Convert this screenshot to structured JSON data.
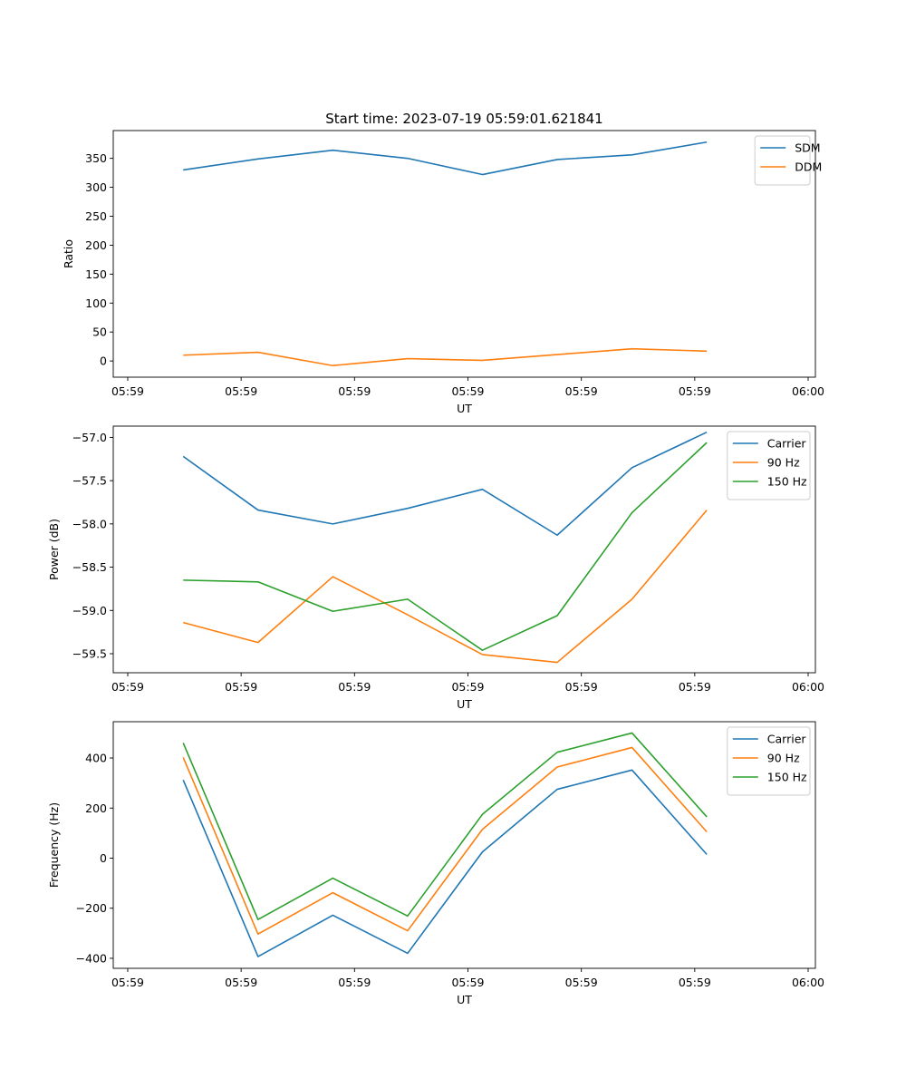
{
  "figure": {
    "title": "Start time: 2023-07-19 05:59:01.621841"
  },
  "chart_data": [
    {
      "type": "line",
      "title": "Start time: 2023-07-19 05:59:01.621841",
      "xlabel": "UT",
      "ylabel": "Ratio",
      "xlim": [
        -0.6,
        28.5
      ],
      "ylim": [
        -28,
        398
      ],
      "x_ticks": [
        0,
        4.7,
        9.4,
        14.1,
        18.8,
        23.5,
        28.2
      ],
      "x_tick_labels": [
        "05:59",
        "05:59",
        "05:59",
        "05:59",
        "05:59",
        "05:59",
        "06:00"
      ],
      "y_ticks": [
        0,
        50,
        100,
        150,
        200,
        250,
        300,
        350
      ],
      "y_tick_labels": [
        "0",
        "50",
        "100",
        "150",
        "200",
        "250",
        "300",
        "350"
      ],
      "legend_position": "top-right",
      "x": [
        2.3,
        5.4,
        8.5,
        11.6,
        14.7,
        17.8,
        20.9,
        24.0
      ],
      "series": [
        {
          "name": "SDM",
          "color": "#1f77b4",
          "values": [
            330,
            349,
            364,
            350,
            322,
            348,
            356,
            378
          ]
        },
        {
          "name": "DDM",
          "color": "#ff7f0e",
          "values": [
            10,
            15,
            -8,
            4,
            1,
            11,
            21,
            17
          ]
        }
      ]
    },
    {
      "type": "line",
      "title": "",
      "xlabel": "UT",
      "ylabel": "Power (dB)",
      "xlim": [
        -0.6,
        28.5
      ],
      "ylim": [
        -59.72,
        -56.87
      ],
      "x_ticks": [
        0,
        4.7,
        9.4,
        14.1,
        18.8,
        23.5,
        28.2
      ],
      "x_tick_labels": [
        "05:59",
        "05:59",
        "05:59",
        "05:59",
        "05:59",
        "05:59",
        "06:00"
      ],
      "y_ticks": [
        -59.5,
        -59.0,
        -58.5,
        -58.0,
        -57.5,
        -57.0
      ],
      "y_tick_labels": [
        "−59.5",
        "−59.0",
        "−58.5",
        "−58.0",
        "−57.5",
        "−57.0"
      ],
      "legend_position": "top-right",
      "x": [
        2.3,
        5.4,
        8.5,
        11.6,
        14.7,
        17.8,
        20.9,
        24.0
      ],
      "series": [
        {
          "name": "Carrier",
          "color": "#1f77b4",
          "values": [
            -57.22,
            -57.84,
            -58.0,
            -57.82,
            -57.6,
            -58.13,
            -57.35,
            -56.94
          ]
        },
        {
          "name": "90 Hz",
          "color": "#ff7f0e",
          "values": [
            -59.14,
            -59.37,
            -58.61,
            -59.05,
            -59.51,
            -59.6,
            -58.87,
            -57.84
          ]
        },
        {
          "name": "150 Hz",
          "color": "#2ca02c",
          "values": [
            -58.65,
            -58.67,
            -59.01,
            -58.87,
            -59.46,
            -59.06,
            -57.87,
            -57.06
          ]
        }
      ]
    },
    {
      "type": "line",
      "title": "",
      "xlabel": "UT",
      "ylabel": "Frequency (Hz)",
      "xlim": [
        -0.6,
        28.5
      ],
      "ylim": [
        -440,
        545
      ],
      "x_ticks": [
        0,
        4.7,
        9.4,
        14.1,
        18.8,
        23.5,
        28.2
      ],
      "x_tick_labels": [
        "05:59",
        "05:59",
        "05:59",
        "05:59",
        "05:59",
        "05:59",
        "06:00"
      ],
      "y_ticks": [
        -400,
        -200,
        0,
        200,
        400
      ],
      "y_tick_labels": [
        "−400",
        "−200",
        "0",
        "200",
        "400"
      ],
      "legend_position": "top-right",
      "x": [
        2.3,
        5.4,
        8.5,
        11.6,
        14.7,
        17.8,
        20.9,
        24.0
      ],
      "series": [
        {
          "name": "Carrier",
          "color": "#1f77b4",
          "values": [
            312,
            -393,
            -228,
            -380,
            25,
            275,
            352,
            15
          ]
        },
        {
          "name": "90 Hz",
          "color": "#ff7f0e",
          "values": [
            402,
            -303,
            -138,
            -290,
            115,
            364,
            442,
            105
          ]
        },
        {
          "name": "150 Hz",
          "color": "#2ca02c",
          "values": [
            460,
            -245,
            -80,
            -231,
            175,
            423,
            500,
            165
          ]
        }
      ]
    }
  ]
}
